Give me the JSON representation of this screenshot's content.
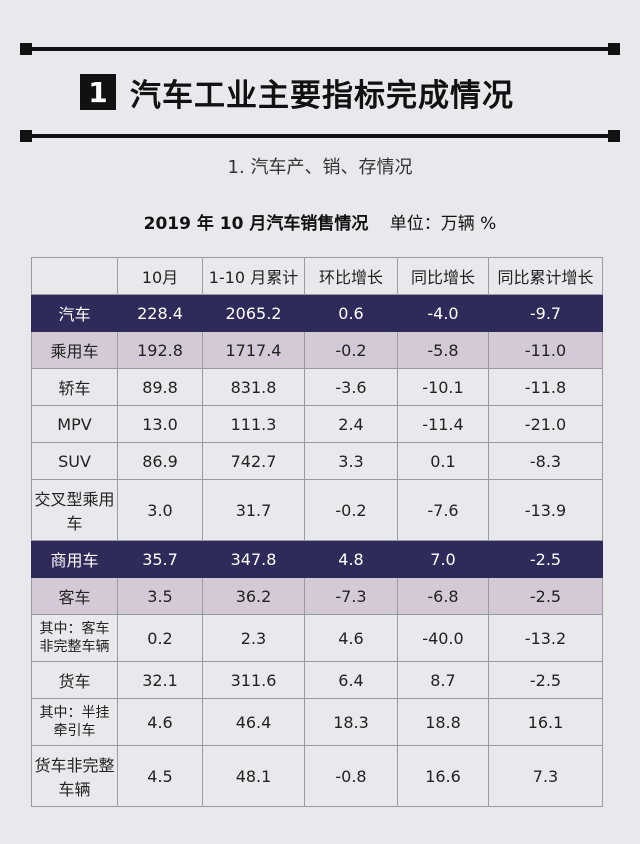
{
  "header": {
    "number": "1",
    "title": "汽车工业主要指标完成情况"
  },
  "subtitle": "1. 汽车产、销、存情况",
  "table_title": {
    "main": "2019 年 10 月汽车销售情况",
    "unit": "单位：万辆 %"
  },
  "table": {
    "columns": [
      "",
      "10月",
      "1-10 月累计",
      "环比增长",
      "同比增长",
      "同比累计增长"
    ],
    "rows": [
      {
        "name": "汽车",
        "values": [
          "228.4",
          "2065.2",
          "0.6",
          "-4.0",
          "-9.7"
        ]
      },
      {
        "name": "乘用车",
        "values": [
          "192.8",
          "1717.4",
          "-0.2",
          "-5.8",
          "-11.0"
        ]
      },
      {
        "name": "轿车",
        "values": [
          "89.8",
          "831.8",
          "-3.6",
          "-10.1",
          "-11.8"
        ]
      },
      {
        "name": "MPV",
        "values": [
          "13.0",
          "111.3",
          "2.4",
          "-11.4",
          "-21.0"
        ]
      },
      {
        "name": "SUV",
        "values": [
          "86.9",
          "742.7",
          "3.3",
          "0.1",
          "-8.3"
        ]
      },
      {
        "name": "交叉型乘用车",
        "values": [
          "3.0",
          "31.7",
          "-0.2",
          "-7.6",
          "-13.9"
        ]
      },
      {
        "name": "商用车",
        "values": [
          "35.7",
          "347.8",
          "4.8",
          "7.0",
          "-2.5"
        ]
      },
      {
        "name": "客车",
        "values": [
          "3.5",
          "36.2",
          "-7.3",
          "-6.8",
          "-2.5"
        ]
      },
      {
        "name": "其中：客车非完整车辆",
        "values": [
          "0.2",
          "2.3",
          "4.6",
          "-40.0",
          "-13.2"
        ]
      },
      {
        "name": "货车",
        "values": [
          "32.1",
          "311.6",
          "6.4",
          "8.7",
          "-2.5"
        ]
      },
      {
        "name": "其中：半挂牵引车",
        "values": [
          "4.6",
          "46.4",
          "18.3",
          "18.8",
          "16.1"
        ]
      },
      {
        "name": "货车非完整车辆",
        "values": [
          "4.5",
          "48.1",
          "-0.8",
          "16.6",
          "7.3"
        ]
      }
    ]
  }
}
